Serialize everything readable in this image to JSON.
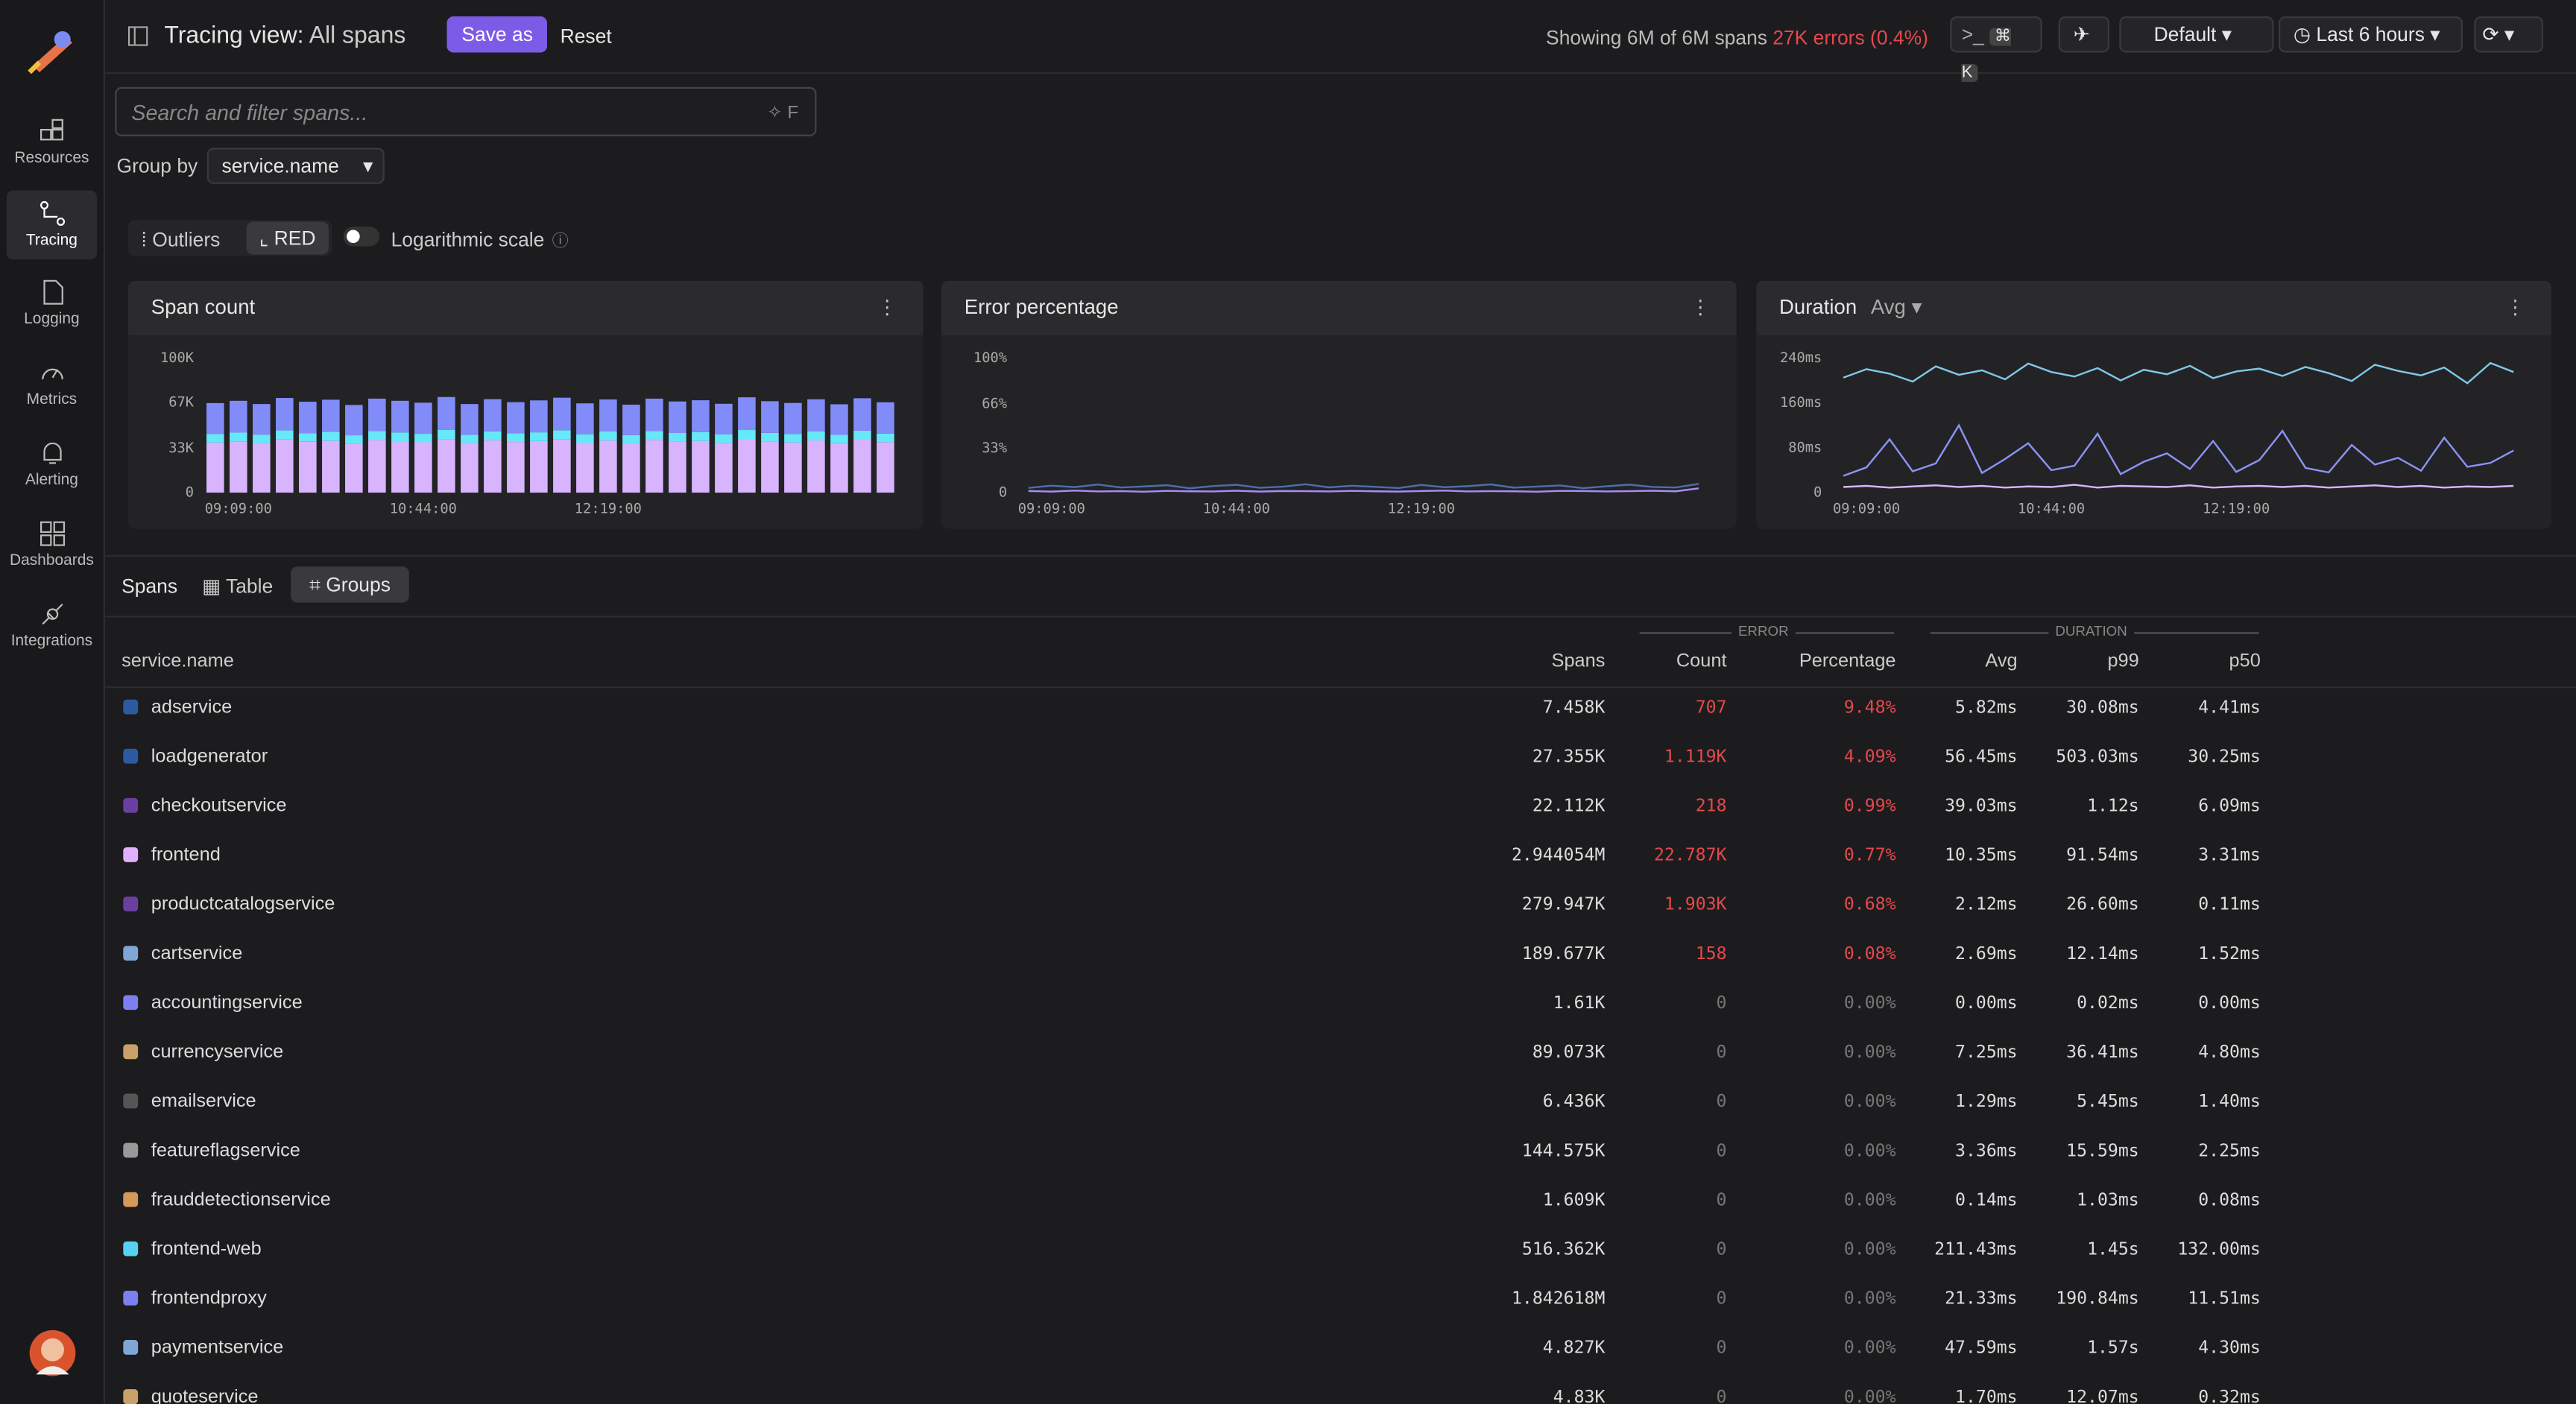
{
  "app": {
    "sidebar": [
      "Resources",
      "Tracing",
      "Logging",
      "Metrics",
      "Alerting",
      "Dashboards",
      "Integrations"
    ],
    "title_prefix": "Tracing view:",
    "title": "All spans",
    "save": "Save as",
    "reset": "Reset",
    "status": "Showing 6M of 6M spans",
    "errors": "27K errors (0.4%)",
    "shortcut": "⌘ K",
    "layout": "Default",
    "time_range": "Last 6 hours"
  },
  "filters": {
    "search_placeholder": "Search and filter spans...",
    "search_shortcut": "F",
    "group_by_label": "Group by",
    "group_by": "service.name",
    "modes": [
      "Outliers",
      "RED"
    ],
    "log_scale": "Logarithmic scale"
  },
  "chart_data": [
    {
      "type": "bar",
      "title": "Span count",
      "grid": false,
      "categories": [
        null,
        "09:09:00",
        null,
        null,
        null,
        null,
        null,
        null,
        null,
        "10:44:00",
        null,
        null,
        null,
        null,
        null,
        null,
        null,
        "12:19:00",
        null,
        null,
        null,
        null,
        null,
        null,
        null,
        null,
        null,
        null,
        null,
        null
      ],
      "ylim": [
        0,
        100000
      ],
      "yticks": [
        0,
        {
          "value": 33000,
          "label": "33K"
        },
        {
          "value": 67000,
          "label": "67K"
        },
        {
          "value": 100000,
          "label": "100K"
        }
      ],
      "series": [
        {
          "name": "frontend",
          "color": "#d8b4fe",
          "values": [
            37200,
            38100,
            36900,
            39400,
            37800,
            38600,
            36500,
            39100,
            38200,
            37400,
            39800,
            36800,
            38900,
            37600,
            38300,
            39500,
            37100,
            38700,
            36600,
            39200,
            37900,
            38400,
            37000,
            39600,
            38000,
            37300,
            38800,
            36700,
            39300,
            37500
          ]
        },
        {
          "name": "frontend-web",
          "color": "#67e8f9",
          "values": [
            6300,
            6500,
            6200,
            6800,
            6400,
            6600,
            6100,
            6700,
            6500,
            6300,
            6900,
            6200,
            6600,
            6400,
            6500,
            6800,
            6300,
            6700,
            6100,
            6600,
            6400,
            6500,
            6200,
            6900,
            6400,
            6300,
            6600,
            6200,
            6700,
            6400
          ]
        },
        {
          "name": "frontendproxy",
          "color": "#818cf8",
          "values": [
            23000,
            23600,
            22700,
            24100,
            23300,
            23800,
            22500,
            24000,
            23500,
            23100,
            24300,
            22800,
            23900,
            23200,
            23700,
            24200,
            22900,
            23800,
            22600,
            24000,
            23400,
            23700,
            22800,
            24300,
            23500,
            23000,
            23900,
            22700,
            24100,
            23200
          ]
        }
      ]
    },
    {
      "type": "line",
      "title": "Error percentage",
      "grid": false,
      "categories": [
        null,
        "09:09:00",
        null,
        null,
        null,
        null,
        null,
        null,
        null,
        "10:44:00",
        null,
        null,
        null,
        null,
        null,
        null,
        null,
        "12:19:00",
        null,
        null,
        null,
        null,
        null,
        null,
        null,
        null,
        null,
        null,
        null,
        null
      ],
      "ylim": [
        0,
        100
      ],
      "yticks": [
        0,
        {
          "value": 33,
          "label": "33%"
        },
        {
          "value": 66,
          "label": "66%"
        },
        {
          "value": 100,
          "label": "100%"
        }
      ],
      "series": [
        {
          "name": "frontend",
          "color": "#a78bfa",
          "values": [
            1.2,
            0.8,
            1.5,
            0.9,
            1.1,
            0.7,
            1.3,
            1.0,
            0.9,
            1.4,
            0.8,
            1.2,
            1.1,
            0.9,
            1.3,
            1.0,
            0.8,
            1.2,
            1.5,
            0.9,
            1.1,
            1.0,
            0.7,
            1.3,
            1.2,
            0.9,
            1.1,
            1.4,
            1.0,
            3.2
          ]
        },
        {
          "name": "adservice",
          "color": "#4b6fae",
          "values": [
            3.5,
            5.2,
            4.1,
            6.0,
            3.8,
            4.6,
            5.5,
            3.2,
            4.9,
            5.8,
            3.6,
            4.4,
            6.2,
            3.9,
            5.1,
            4.3,
            3.4,
            5.7,
            4.0,
            4.8,
            6.1,
            3.7,
            4.5,
            5.3,
            3.3,
            4.7,
            5.9,
            4.2,
            3.8,
            6.5
          ]
        }
      ]
    },
    {
      "type": "line",
      "title": "Duration",
      "aggregation": "Avg",
      "grid": false,
      "categories": [
        null,
        "09:09:00",
        null,
        null,
        null,
        null,
        null,
        null,
        null,
        "10:44:00",
        null,
        null,
        null,
        null,
        null,
        null,
        null,
        "12:19:00",
        null,
        null,
        null,
        null,
        null,
        null,
        null,
        null,
        null,
        null,
        null,
        null
      ],
      "ylim": [
        0,
        240
      ],
      "yticks": [
        0,
        {
          "value": 80,
          "label": "80ms"
        },
        {
          "value": 160,
          "label": "160ms"
        },
        {
          "value": 240,
          "label": "240ms"
        }
      ],
      "series": [
        {
          "name": "frontend-web",
          "color": "#7fc8e8",
          "values": [
            205,
            220,
            212,
            198,
            225,
            210,
            218,
            202,
            230,
            215,
            207,
            222,
            200,
            219,
            211,
            226,
            204,
            216,
            221,
            208,
            224,
            213,
            199,
            228,
            217,
            209,
            223,
            195,
            231,
            215
          ]
        },
        {
          "name": "loadgenerator",
          "color": "#8b93f5",
          "values": [
            30,
            45,
            95,
            38,
            52,
            120,
            35,
            60,
            88,
            40,
            48,
            105,
            33,
            55,
            70,
            42,
            92,
            37,
            58,
            110,
            44,
            36,
            85,
            50,
            62,
            39,
            98,
            46,
            53,
            75
          ]
        },
        {
          "name": "frontend",
          "color": "#d8b4fe",
          "values": [
            10,
            12,
            9,
            11,
            13,
            10,
            12,
            9,
            11,
            10,
            14,
            9,
            12,
            11,
            10,
            13,
            9,
            11,
            12,
            10,
            12,
            9,
            11,
            13,
            10,
            12,
            9,
            11,
            10,
            12
          ]
        }
      ]
    }
  ],
  "spans": {
    "label": "Spans",
    "views": [
      "Table",
      "Groups"
    ],
    "groups": [
      "ERROR",
      "DURATION"
    ],
    "columns": [
      "service.name",
      "Spans",
      "Count",
      "Percentage",
      "Avg",
      "p99",
      "p50"
    ],
    "colors": [
      "#2c5aa0",
      "#2c5aa0",
      "#6b3fa0",
      "#e0b0ff",
      "#6b3fa0",
      "#7fa6d6",
      "#7b7ff0",
      "#c8a06a",
      "#555555",
      "#999999",
      "#d49a5a",
      "#5ad0f0",
      "#7b7ff0",
      "#7fa6d6",
      "#c8a06a"
    ],
    "rows": [
      [
        "adservice",
        "7.458K",
        "707",
        "9.48%",
        "5.82ms",
        "30.08ms",
        "4.41ms"
      ],
      [
        "loadgenerator",
        "27.355K",
        "1.119K",
        "4.09%",
        "56.45ms",
        "503.03ms",
        "30.25ms"
      ],
      [
        "checkoutservice",
        "22.112K",
        "218",
        "0.99%",
        "39.03ms",
        "1.12s",
        "6.09ms"
      ],
      [
        "frontend",
        "2.944054M",
        "22.787K",
        "0.77%",
        "10.35ms",
        "91.54ms",
        "3.31ms"
      ],
      [
        "productcatalogservice",
        "279.947K",
        "1.903K",
        "0.68%",
        "2.12ms",
        "26.60ms",
        "0.11ms"
      ],
      [
        "cartservice",
        "189.677K",
        "158",
        "0.08%",
        "2.69ms",
        "12.14ms",
        "1.52ms"
      ],
      [
        "accountingservice",
        "1.61K",
        "0",
        "0.00%",
        "0.00ms",
        "0.02ms",
        "0.00ms"
      ],
      [
        "currencyservice",
        "89.073K",
        "0",
        "0.00%",
        "7.25ms",
        "36.41ms",
        "4.80ms"
      ],
      [
        "emailservice",
        "6.436K",
        "0",
        "0.00%",
        "1.29ms",
        "5.45ms",
        "1.40ms"
      ],
      [
        "featureflagservice",
        "144.575K",
        "0",
        "0.00%",
        "3.36ms",
        "15.59ms",
        "2.25ms"
      ],
      [
        "frauddetectionservice",
        "1.609K",
        "0",
        "0.00%",
        "0.14ms",
        "1.03ms",
        "0.08ms"
      ],
      [
        "frontend-web",
        "516.362K",
        "0",
        "0.00%",
        "211.43ms",
        "1.45s",
        "132.00ms"
      ],
      [
        "frontendproxy",
        "1.842618M",
        "0",
        "0.00%",
        "21.33ms",
        "190.84ms",
        "11.51ms"
      ],
      [
        "paymentservice",
        "4.827K",
        "0",
        "0.00%",
        "47.59ms",
        "1.57s",
        "4.30ms"
      ],
      [
        "quoteservice",
        "4.83K",
        "0",
        "0.00%",
        "1.70ms",
        "12.07ms",
        "0.32ms"
      ]
    ]
  }
}
